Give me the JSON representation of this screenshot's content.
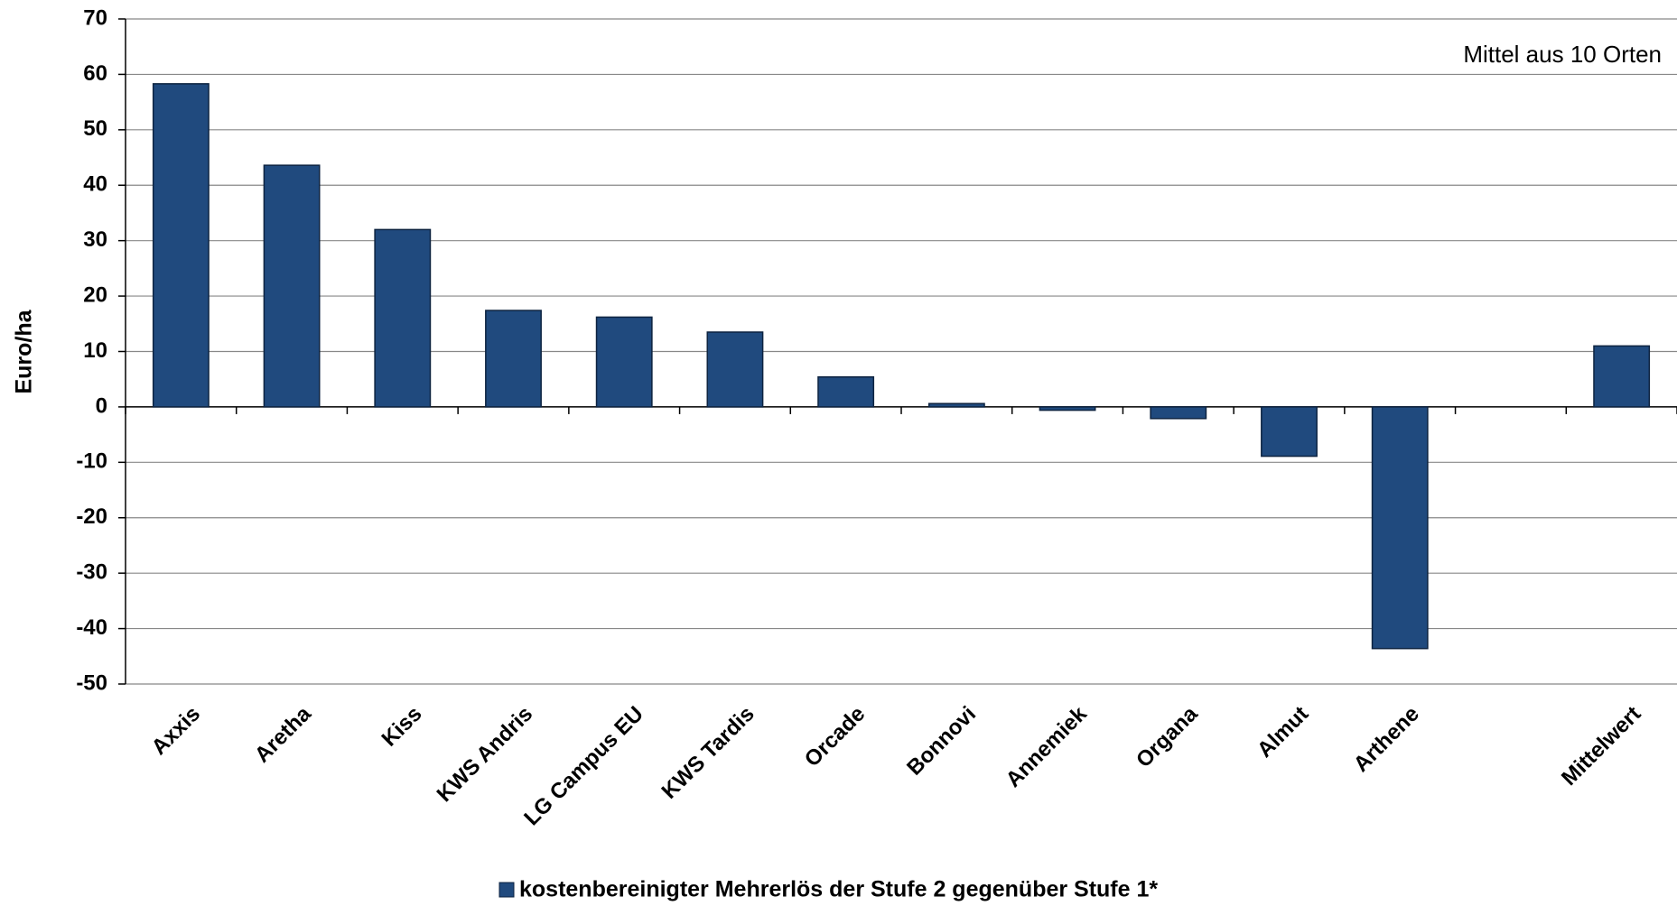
{
  "chart_data": {
    "type": "bar",
    "ylabel": "Euro/ha",
    "annotation": "Mittel aus 10 Orten",
    "categories": [
      "Axxis",
      "Aretha",
      "Kiss",
      "KWS Andris",
      "LG Campus EU",
      "KWS Tardis",
      "Orcade",
      "Bonnovi",
      "Annemiek",
      "Organa",
      "Almut",
      "Arthene",
      null,
      "Mittelwert"
    ],
    "series": [
      {
        "name": "kostenbereinigter Mehrerlös der Stufe 2 gegenüber Stufe 1*",
        "color": "#204a7e",
        "values": [
          58.3,
          43.6,
          32.0,
          17.4,
          16.2,
          13.5,
          5.4,
          0.6,
          -0.6,
          -2.1,
          -8.9,
          -43.6,
          null,
          11.0
        ]
      }
    ],
    "ylim": [
      -50,
      70
    ],
    "yticks": [
      -50,
      -40,
      -30,
      -20,
      -10,
      0,
      10,
      20,
      30,
      40,
      50,
      60,
      70
    ],
    "grid": true
  }
}
